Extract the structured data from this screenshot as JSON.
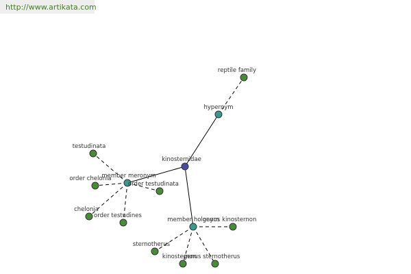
{
  "header": {
    "url": "http://www.artikata.com"
  },
  "nodes": [
    {
      "label": "kinosternidae"
    },
    {
      "label": "hypernym"
    },
    {
      "label": "reptile family"
    },
    {
      "label": "member meronym"
    },
    {
      "label": "testudinata"
    },
    {
      "label": "order chelonia"
    },
    {
      "label": "order testudinata"
    },
    {
      "label": "chelonia"
    },
    {
      "label": "order testudines"
    },
    {
      "label": "member holonym"
    },
    {
      "label": "genus kinosternon"
    },
    {
      "label": "sternotherus"
    },
    {
      "label": "kinosternon"
    },
    {
      "label": "genus sternotherus"
    }
  ]
}
